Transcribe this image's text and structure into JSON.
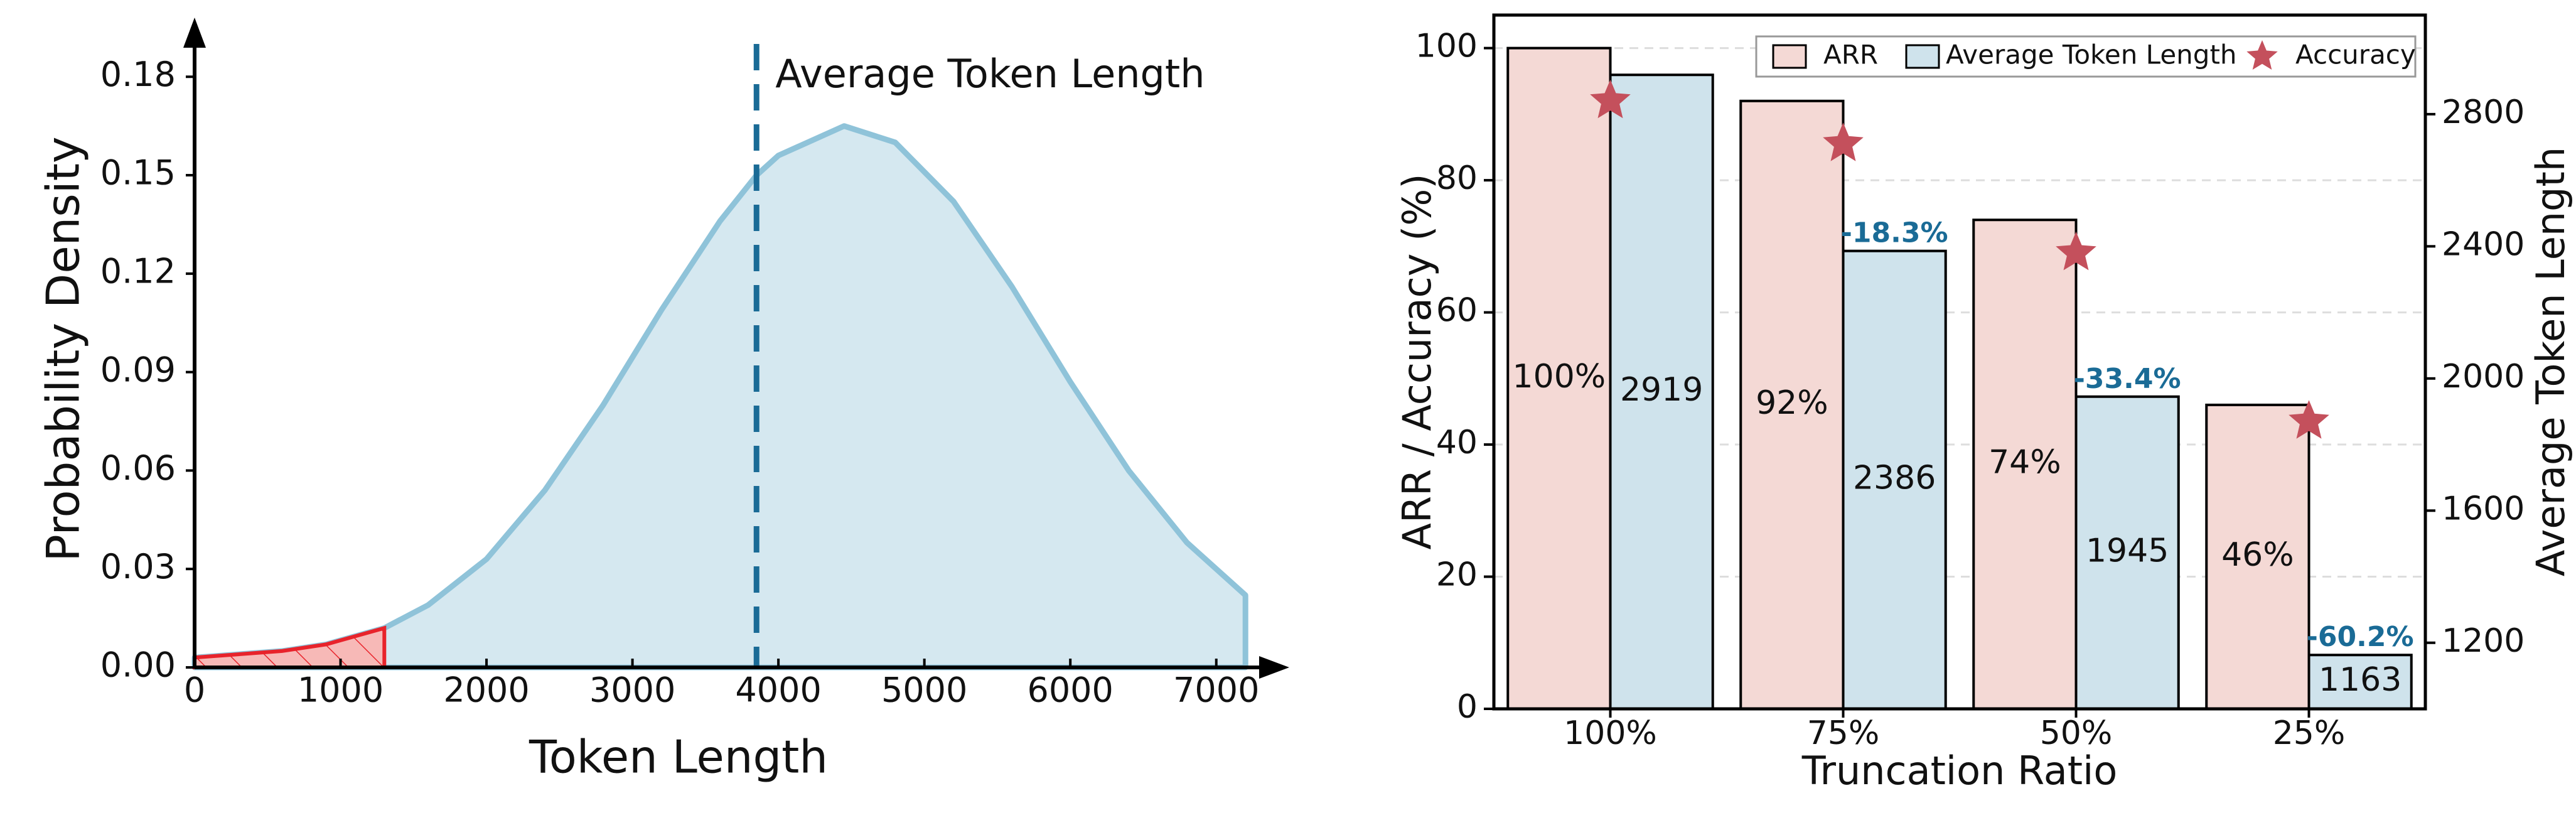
{
  "chart_data": [
    {
      "type": "area",
      "xlabel": "Token Length",
      "ylabel": "Probability Density",
      "annotation": "Average Token Length",
      "x": [
        0,
        300,
        600,
        900,
        1300,
        1600,
        2000,
        2400,
        2800,
        3200,
        3600,
        3850,
        4000,
        4450,
        4800,
        5200,
        5600,
        6000,
        6400,
        6800,
        7200
      ],
      "values": [
        0.003,
        0.004,
        0.005,
        0.007,
        0.012,
        0.019,
        0.033,
        0.054,
        0.08,
        0.109,
        0.136,
        0.15,
        0.156,
        0.165,
        0.16,
        0.142,
        0.116,
        0.087,
        0.06,
        0.038,
        0.022
      ],
      "color": "#8fc3d9",
      "fill": "#d5e8f0",
      "highlight_xlim": [
        0,
        1300
      ],
      "highlight_color": "#e8232b",
      "vline": 3850,
      "vline_color": "#1a6b96",
      "xlim": [
        0,
        7500
      ],
      "xticks": [
        0,
        1000,
        2000,
        3000,
        4000,
        5000,
        6000,
        7000
      ],
      "ylim": [
        0,
        0.19
      ],
      "yticks": [
        {
          "value": 0,
          "label": "0.00"
        },
        0.03,
        0.06,
        0.09,
        0.12,
        0.15,
        0.18
      ]
    },
    {
      "type": "bar",
      "xlabel": "Truncation Ratio",
      "ylabel": "ARR / Accuracy (%)",
      "y2label": "Average Token Length",
      "categories": [
        "100%",
        "75%",
        "50%",
        "25%"
      ],
      "series": [
        {
          "name": "ARR",
          "type": "bar",
          "color": "#f4d9d5",
          "values": [
            100,
            92,
            74,
            46
          ],
          "value_labels": [
            "100%",
            "92%",
            "74%",
            "46%"
          ]
        },
        {
          "name": "Average Token Length",
          "type": "bar",
          "axis": "y2",
          "color": "#cfe3ec",
          "values": [
            2919,
            2386,
            1945,
            1163
          ],
          "change_labels": [
            null,
            "-18.3%",
            "-33.4%",
            "-60.2%"
          ]
        },
        {
          "name": "Accuracy",
          "type": "scatter",
          "color": "#c4505c",
          "values": [
            92,
            85.5,
            69,
            43.5
          ]
        }
      ],
      "ylim": [
        0,
        105
      ],
      "yticks": [
        0,
        20,
        40,
        60,
        80,
        100
      ],
      "y2lim": [
        1000,
        3100
      ],
      "y2ticks": [
        1200,
        1600,
        2000,
        2400,
        2800
      ],
      "grid": true,
      "legend": "upper right"
    }
  ]
}
